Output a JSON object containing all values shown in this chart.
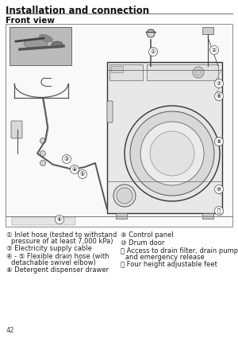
{
  "title": "Installation and connection",
  "subtitle": "Front view",
  "bg_color": "#ffffff",
  "legend_items_left": [
    [
      "①",
      "Inlet hose (tested to withstand",
      "pressure of at least 7,000 kPa)"
    ],
    [
      "③",
      "Electricity supply cable",
      ""
    ],
    [
      "④ - ⑤",
      "Flexible drain hose (with",
      "detachable swivel elbow)"
    ],
    [
      "⑧",
      "Detergent dispenser drawer",
      ""
    ]
  ],
  "legend_items_right": [
    [
      "⑨",
      "Control panel",
      ""
    ],
    [
      "⑩",
      "Drum door",
      ""
    ],
    [
      "⑪",
      "Access to drain filter, drain pump",
      "and emergency release"
    ],
    [
      "⑫",
      "Four height adjustable feet",
      ""
    ]
  ],
  "page_number": "42",
  "title_fontsize": 8.5,
  "subtitle_fontsize": 7.5,
  "legend_fontsize": 6.0,
  "callout_fontsize": 5.0
}
